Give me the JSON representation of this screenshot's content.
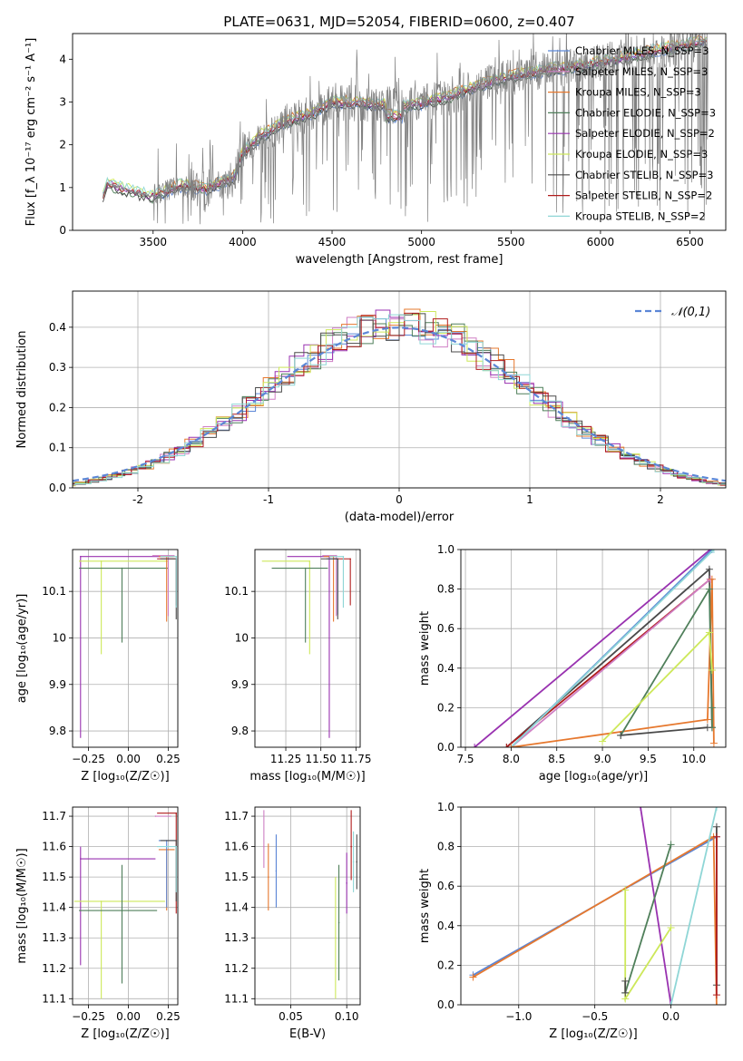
{
  "figure_title": "PLATE=0631, MJD=52054, FIBERID=0600, z=0.407",
  "colors": {
    "chabrier_miles": "#5b86d6",
    "salpeter_miles": "#cf7fc4",
    "kroupa_miles": "#e6782e",
    "chabrier_elodie": "#4f7f5a",
    "salpeter_elodie": "#9932b0",
    "kroupa_elodie": "#cde85a",
    "chabrier_stelib": "#4a4a4a",
    "salpeter_stelib": "#b01c1c",
    "kroupa_stelib": "#8fd6d6",
    "data": "#808080"
  },
  "chart_data": [
    {
      "id": "spectrum",
      "type": "line",
      "title": "",
      "xlabel": "wavelength [Angstrom, rest frame]",
      "ylabel": "Flux [f_λ 10⁻¹⁷ erg cm⁻² s⁻¹ A⁻¹]",
      "xlim": [
        3050,
        6700
      ],
      "ylim": [
        0,
        4.6
      ],
      "xticks": [
        3500,
        4000,
        4500,
        5000,
        5500,
        6000,
        6500
      ],
      "yticks": [
        0,
        1,
        2,
        3,
        4
      ],
      "grid": false,
      "legend_position": "top-right",
      "series": [
        {
          "name": "Chabrier MILES, N_SSP=3",
          "key": "chabrier_miles"
        },
        {
          "name": "Salpeter MILES, N_SSP=3",
          "key": "salpeter_miles"
        },
        {
          "name": "Kroupa MILES, N_SSP=3",
          "key": "kroupa_miles"
        },
        {
          "name": "Chabrier ELODIE, N_SSP=3",
          "key": "chabrier_elodie"
        },
        {
          "name": "Salpeter ELODIE, N_SSP=2",
          "key": "salpeter_elodie"
        },
        {
          "name": "Kroupa ELODIE, N_SSP=3",
          "key": "kroupa_elodie"
        },
        {
          "name": "Chabrier STELIB, N_SSP=3",
          "key": "chabrier_stelib"
        },
        {
          "name": "Salpeter STELIB, N_SSP=2",
          "key": "salpeter_stelib"
        },
        {
          "name": "Kroupa STELIB, N_SSP=2",
          "key": "kroupa_stelib"
        }
      ],
      "continuum": [
        [
          3220,
          0.8
        ],
        [
          3240,
          1.1
        ],
        [
          3300,
          1.02
        ],
        [
          3400,
          0.88
        ],
        [
          3500,
          0.8
        ],
        [
          3650,
          1.05
        ],
        [
          3800,
          0.98
        ],
        [
          3950,
          1.2
        ],
        [
          4000,
          1.8
        ],
        [
          4100,
          2.2
        ],
        [
          4250,
          2.55
        ],
        [
          4400,
          2.75
        ],
        [
          4500,
          3.0
        ],
        [
          4700,
          2.95
        ],
        [
          4900,
          2.9
        ],
        [
          5100,
          3.05
        ],
        [
          5300,
          3.35
        ],
        [
          5500,
          3.6
        ],
        [
          5700,
          3.75
        ],
        [
          5900,
          3.85
        ],
        [
          6100,
          4.0
        ],
        [
          6300,
          4.2
        ],
        [
          6500,
          4.35
        ],
        [
          6600,
          4.45
        ]
      ]
    },
    {
      "id": "residuals",
      "type": "line",
      "title": "",
      "xlabel": "(data-model)/error",
      "ylabel": "Normed distribution",
      "xlim": [
        -2.5,
        2.5
      ],
      "ylim": [
        0,
        0.49
      ],
      "xticks": [
        -2,
        -1,
        0,
        1,
        2
      ],
      "yticks": [
        0.0,
        0.1,
        0.2,
        0.3,
        0.4
      ],
      "grid": true,
      "legend_position": "top-right",
      "legend": "𝒩(0,1)",
      "gaussian": {
        "mean": 0,
        "sigma": 1
      }
    },
    {
      "id": "age_vs_Z",
      "type": "scatter",
      "xlabel": "Z [log₁₀(Z/Z☉)]",
      "ylabel": "age  [log₁₀(age/yr)]",
      "xlim": [
        -0.35,
        0.31
      ],
      "ylim": [
        9.765,
        10.19
      ],
      "xticks": [
        -0.25,
        0.0,
        0.25
      ],
      "xticklabels": [
        "−0.25",
        "0.00",
        "0.25"
      ],
      "yticks": [
        9.8,
        9.9,
        10.0,
        10.1
      ],
      "grid": true,
      "points": [
        {
          "key": "salpeter_elodie",
          "x": -0.3,
          "y": 10.175,
          "xerr": [
            0.0,
            0.58
          ],
          "yerr": [
            0.39,
            0.0
          ]
        },
        {
          "key": "kroupa_elodie",
          "x": -0.17,
          "y": 10.165,
          "xerr": [
            0.14,
            0.42
          ],
          "yerr": [
            0.2,
            0.0
          ]
        },
        {
          "key": "chabrier_elodie",
          "x": -0.04,
          "y": 10.15,
          "xerr": [
            0.27,
            0.29
          ],
          "yerr": [
            0.16,
            0.0
          ]
        },
        {
          "key": "salpeter_miles",
          "x": 0.25,
          "y": 10.177,
          "xerr": [
            0.1,
            0.04
          ],
          "yerr": [
            0.13,
            0.0
          ]
        },
        {
          "key": "kroupa_miles",
          "x": 0.24,
          "y": 10.175,
          "xerr": [
            0.05,
            0.05
          ],
          "yerr": [
            0.14,
            0.0
          ]
        },
        {
          "key": "salpeter_stelib",
          "x": 0.3,
          "y": 10.17,
          "xerr": [
            0.12,
            0.0
          ],
          "yerr": [
            0.1,
            0.0
          ]
        },
        {
          "key": "chabrier_stelib",
          "x": 0.3,
          "y": 10.17,
          "xerr": [
            0.1,
            0.0
          ],
          "yerr": [
            0.13,
            0.0
          ]
        },
        {
          "key": "kroupa_stelib",
          "x": 0.3,
          "y": 10.175,
          "xerr": [
            0.1,
            0.0
          ],
          "yerr": [
            0.11,
            0.0
          ]
        }
      ]
    },
    {
      "id": "age_vs_mass",
      "type": "scatter",
      "xlabel": "mass [log₁₀(M/M☉)]",
      "ylabel": "",
      "xlim": [
        11.03,
        11.78
      ],
      "ylim": [
        9.765,
        10.19
      ],
      "xticks": [
        11.25,
        11.5,
        11.75
      ],
      "xticklabels": [
        "11.25",
        "11.50",
        "11.75"
      ],
      "yticks": [
        9.8,
        9.9,
        10.0,
        10.1
      ],
      "grid": true,
      "points": [
        {
          "key": "salpeter_elodie",
          "x": 11.56,
          "y": 10.175,
          "xerr": [
            0.3,
            0.0
          ],
          "yerr": [
            0.39,
            0.0
          ]
        },
        {
          "key": "kroupa_elodie",
          "x": 11.42,
          "y": 10.165,
          "xerr": [
            0.34,
            0.0
          ],
          "yerr": [
            0.2,
            0.0
          ]
        },
        {
          "key": "chabrier_elodie",
          "x": 11.39,
          "y": 10.15,
          "xerr": [
            0.24,
            0.16
          ],
          "yerr": [
            0.16,
            0.0
          ]
        },
        {
          "key": "salpeter_miles",
          "x": 11.61,
          "y": 10.177,
          "xerr": [
            0.1,
            0.0
          ],
          "yerr": [
            0.13,
            0.0
          ]
        },
        {
          "key": "kroupa_miles",
          "x": 11.59,
          "y": 10.175,
          "xerr": [
            0.07,
            0.0
          ],
          "yerr": [
            0.14,
            0.0
          ]
        },
        {
          "key": "chabrier_miles",
          "x": 11.62,
          "y": 10.17,
          "xerr": [
            0.08,
            0.0
          ],
          "yerr": [
            0.12,
            0.0
          ]
        },
        {
          "key": "salpeter_stelib",
          "x": 11.71,
          "y": 10.17,
          "xerr": [
            0.12,
            0.0
          ],
          "yerr": [
            0.1,
            0.0
          ]
        },
        {
          "key": "chabrier_stelib",
          "x": 11.62,
          "y": 10.17,
          "xerr": [
            0.12,
            0.0
          ],
          "yerr": [
            0.13,
            0.0
          ]
        },
        {
          "key": "kroupa_stelib",
          "x": 11.66,
          "y": 10.175,
          "xerr": [
            0.1,
            0.0
          ],
          "yerr": [
            0.11,
            0.0
          ]
        }
      ]
    },
    {
      "id": "weight_vs_age",
      "type": "line",
      "xlabel": "age  [log₁₀(age/yr)]",
      "ylabel": "mass weight",
      "xlim": [
        7.45,
        10.35
      ],
      "ylim": [
        0,
        1.0
      ],
      "xticks": [
        7.5,
        8.0,
        8.5,
        9.0,
        9.5,
        10.0
      ],
      "xticklabels": [
        "7.5",
        "8.0",
        "8.5",
        "9.0",
        "9.5",
        "10.0"
      ],
      "yticks": [
        0.0,
        0.2,
        0.4,
        0.6,
        0.8,
        1.0
      ],
      "grid": true,
      "series": [
        {
          "key": "salpeter_elodie",
          "x": [
            7.6,
            10.18
          ],
          "y": [
            0.0,
            1.0
          ]
        },
        {
          "key": "chabrier_stelib",
          "x": [
            7.95,
            10.17,
            10.2
          ],
          "y": [
            0.0,
            0.9,
            0.1
          ]
        },
        {
          "key": "salpeter_stelib",
          "x": [
            7.95,
            10.18
          ],
          "y": [
            0.0,
            0.85
          ]
        },
        {
          "key": "salpeter_miles",
          "x": [
            8.0,
            10.18
          ],
          "y": [
            0.0,
            0.85
          ]
        },
        {
          "key": "chabrier_miles",
          "x": [
            8.0,
            10.2
          ],
          "y": [
            0.0,
            1.0
          ]
        },
        {
          "key": "kroupa_stelib",
          "x": [
            8.0,
            10.22
          ],
          "y": [
            0.0,
            1.0
          ]
        },
        {
          "key": "kroupa_miles",
          "x": [
            8.0,
            10.15,
            10.2,
            10.22
          ],
          "y": [
            0.0,
            0.14,
            0.85,
            0.02
          ]
        },
        {
          "key": "chabrier_elodie",
          "x": [
            9.2,
            10.17,
            10.2,
            10.2
          ],
          "y": [
            0.06,
            0.8,
            0.1,
            0.2
          ]
        },
        {
          "key": "kroupa_elodie",
          "x": [
            9.0,
            10.17,
            10.2
          ],
          "y": [
            0.03,
            0.58,
            0.39
          ]
        },
        {
          "key": "chabrier_stelib",
          "x": [
            9.2,
            10.15
          ],
          "y": [
            0.06,
            0.1
          ]
        }
      ]
    },
    {
      "id": "mass_vs_Z",
      "type": "scatter",
      "xlabel": "Z [log₁₀(Z/Z☉)]",
      "ylabel": "mass [log₁₀(M/M☉)]",
      "xlim": [
        -0.35,
        0.31
      ],
      "ylim": [
        11.08,
        11.73
      ],
      "xticks": [
        -0.25,
        0.0,
        0.25
      ],
      "xticklabels": [
        "−0.25",
        "0.00",
        "0.25"
      ],
      "yticks": [
        11.1,
        11.2,
        11.3,
        11.4,
        11.5,
        11.6,
        11.7
      ],
      "grid": true,
      "points": [
        {
          "key": "salpeter_elodie",
          "x": -0.3,
          "y": 11.56,
          "xerr": [
            0.0,
            0.47
          ],
          "yerr": [
            0.35,
            0.04
          ]
        },
        {
          "key": "kroupa_elodie",
          "x": -0.17,
          "y": 11.42,
          "xerr": [
            0.17,
            0.4
          ],
          "yerr": [
            0.32,
            0.0
          ]
        },
        {
          "key": "chabrier_elodie",
          "x": -0.04,
          "y": 11.39,
          "xerr": [
            0.27,
            0.22
          ],
          "yerr": [
            0.24,
            0.15
          ]
        },
        {
          "key": "salpeter_miles",
          "x": 0.17,
          "y": 11.7,
          "xerr": [
            0.0,
            0.1
          ],
          "yerr": [
            0.0,
            0.0
          ]
        },
        {
          "key": "kroupa_miles",
          "x": 0.24,
          "y": 11.59,
          "xerr": [
            0.05,
            0.05
          ],
          "yerr": [
            0.2,
            0.0
          ]
        },
        {
          "key": "chabrier_miles",
          "x": 0.24,
          "y": 11.62,
          "xerr": [
            0.05,
            0.05
          ],
          "yerr": [
            0.22,
            0.0
          ]
        },
        {
          "key": "salpeter_stelib",
          "x": 0.3,
          "y": 11.71,
          "xerr": [
            0.12,
            0.0
          ],
          "yerr": [
            0.33,
            0.0
          ]
        },
        {
          "key": "chabrier_stelib",
          "x": 0.3,
          "y": 11.62,
          "xerr": [
            0.1,
            0.0
          ],
          "yerr": [
            0.2,
            0.0
          ]
        },
        {
          "key": "kroupa_stelib",
          "x": 0.3,
          "y": 11.6,
          "xerr": [
            0.12,
            0.0
          ],
          "yerr": [
            0.15,
            0.0
          ]
        }
      ]
    },
    {
      "id": "mass_vs_ebv",
      "type": "scatter",
      "xlabel": "E(B-V)",
      "ylabel": "",
      "xlim": [
        0.018,
        0.112
      ],
      "ylim": [
        11.08,
        11.73
      ],
      "xticks": [
        0.05,
        0.1
      ],
      "xticklabels": [
        "0.05",
        "0.10"
      ],
      "yticks": [
        11.1,
        11.2,
        11.3,
        11.4,
        11.5,
        11.6,
        11.7
      ],
      "grid": true,
      "points": [
        {
          "key": "salpeter_miles",
          "x": 0.026,
          "y": 11.6,
          "yerr": [
            0.07,
            0.12
          ]
        },
        {
          "key": "kroupa_miles",
          "x": 0.03,
          "y": 11.5,
          "yerr": [
            0.11,
            0.11
          ]
        },
        {
          "key": "chabrier_miles",
          "x": 0.037,
          "y": 11.52,
          "yerr": [
            0.12,
            0.12
          ]
        },
        {
          "key": "kroupa_elodie",
          "x": 0.09,
          "y": 11.3,
          "yerr": [
            0.2,
            0.2
          ]
        },
        {
          "key": "chabrier_elodie",
          "x": 0.093,
          "y": 11.35,
          "yerr": [
            0.19,
            0.19
          ]
        },
        {
          "key": "salpeter_elodie",
          "x": 0.1,
          "y": 11.48,
          "yerr": [
            0.1,
            0.1
          ]
        },
        {
          "key": "salpeter_stelib",
          "x": 0.104,
          "y": 11.6,
          "yerr": [
            0.11,
            0.12
          ]
        },
        {
          "key": "kroupa_stelib",
          "x": 0.106,
          "y": 11.55,
          "yerr": [
            0.1,
            0.1
          ]
        },
        {
          "key": "chabrier_stelib",
          "x": 0.109,
          "y": 11.55,
          "yerr": [
            0.09,
            0.09
          ]
        }
      ]
    },
    {
      "id": "weight_vs_Z",
      "type": "line",
      "xlabel": "Z [log₁₀(Z/Z☉)]",
      "ylabel": "mass weight",
      "xlim": [
        -1.38,
        0.36
      ],
      "ylim": [
        0,
        1.0
      ],
      "xticks": [
        -1.0,
        -0.5,
        0.0
      ],
      "xticklabels": [
        "−1.0",
        "−0.5",
        "0.0"
      ],
      "yticks": [
        0.0,
        0.2,
        0.4,
        0.6,
        0.8,
        1.0
      ],
      "grid": true,
      "series": [
        {
          "key": "chabrier_miles",
          "x": [
            -1.3,
            0.3
          ],
          "y": [
            0.15,
            0.85
          ]
        },
        {
          "key": "kroupa_miles",
          "x": [
            -1.3,
            0.28,
            0.3
          ],
          "y": [
            0.14,
            0.85,
            0.0
          ]
        },
        {
          "key": "salpeter_elodie",
          "x": [
            -0.2,
            0.0
          ],
          "y": [
            1.0,
            0.0
          ]
        },
        {
          "key": "chabrier_elodie",
          "x": [
            -0.3,
            0.0
          ],
          "y": [
            0.06,
            0.81
          ]
        },
        {
          "key": "kroupa_elodie",
          "x": [
            -0.3,
            -0.3,
            0.0
          ],
          "y": [
            0.58,
            0.03,
            0.39
          ]
        },
        {
          "key": "chabrier_stelib",
          "x": [
            -0.3,
            -0.3
          ],
          "y": [
            0.06,
            0.12
          ]
        },
        {
          "key": "chabrier_stelib",
          "x": [
            0.3,
            0.3
          ],
          "y": [
            0.1,
            0.9
          ]
        },
        {
          "key": "salpeter_stelib",
          "x": [
            0.3,
            0.3
          ],
          "y": [
            0.05,
            0.85
          ]
        },
        {
          "key": "kroupa_stelib",
          "x": [
            0.0,
            0.3
          ],
          "y": [
            0.0,
            1.0
          ]
        }
      ]
    }
  ]
}
